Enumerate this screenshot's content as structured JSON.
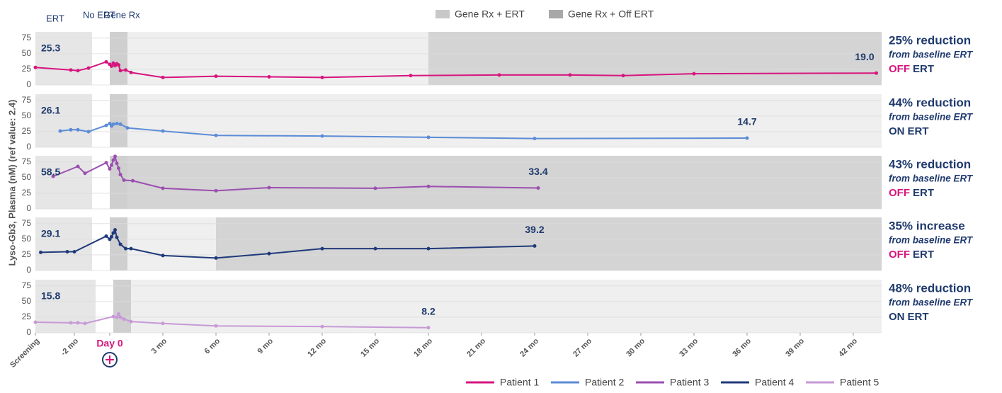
{
  "chart_data": {
    "type": "line",
    "ylabel": "Lyso-Gb3, Plasma (nM) (ref value: 2.4)",
    "phase_labels": {
      "ert": "ERT",
      "no_ert": "No ERT",
      "gene_rx": "Gene Rx"
    },
    "band_legend": [
      {
        "name": "Gene Rx + ERT",
        "color": "#c8c8c8"
      },
      {
        "name": "Gene Rx + Off ERT",
        "color": "#a8a8a8"
      }
    ],
    "xlim": [
      -4.2,
      43.6
    ],
    "xticks": [
      {
        "value": -4.2,
        "label": "Screening"
      },
      {
        "value": -2,
        "label": "-2 mo"
      },
      {
        "value": 0,
        "label": "Day 0"
      },
      {
        "value": 3,
        "label": "3 mo"
      },
      {
        "value": 6,
        "label": "6 mo"
      },
      {
        "value": 9,
        "label": "9 mo"
      },
      {
        "value": 12,
        "label": "12 mo"
      },
      {
        "value": 15,
        "label": "15 mo"
      },
      {
        "value": 18,
        "label": "18 mo"
      },
      {
        "value": 21,
        "label": "21 mo"
      },
      {
        "value": 24,
        "label": "24 mo"
      },
      {
        "value": 27,
        "label": "27 mo"
      },
      {
        "value": 30,
        "label": "30 mo"
      },
      {
        "value": 33,
        "label": "33 mo"
      },
      {
        "value": 36,
        "label": "36 mo"
      },
      {
        "value": 39,
        "label": "39 mo"
      },
      {
        "value": 42,
        "label": "42 mo"
      }
    ],
    "ylim": [
      0,
      85
    ],
    "yticks": [
      0,
      25,
      50,
      75
    ],
    "grid": true,
    "series": [
      {
        "name": "Patient 1",
        "color": "#d6157e",
        "ert_band": [
          -4.2,
          -1
        ],
        "gene_band": [
          0,
          1
        ],
        "off_ert_band": [
          18,
          43.6
        ],
        "x": [
          -4.2,
          -2.2,
          -1.8,
          -1.2,
          -0.2,
          0,
          0.1,
          0.2,
          0.3,
          0.4,
          0.5,
          0.6,
          0.9,
          1.2,
          3,
          6,
          9,
          12,
          17,
          22,
          26,
          29,
          33,
          43.3
        ],
        "values": [
          28,
          24,
          23,
          27,
          37,
          33,
          30,
          35,
          31,
          34,
          32,
          23,
          24,
          20,
          12,
          14,
          13,
          12,
          15,
          16,
          16,
          15,
          18,
          19
        ],
        "baseline_label": "25.3",
        "latest_label": "19.0",
        "headline": "25% reduction",
        "sub": "from baseline ERT",
        "status": [
          "OFF",
          "ERT"
        ],
        "status_color": "#d6157e"
      },
      {
        "name": "Patient 2",
        "color": "#5b8bd6",
        "ert_band": [
          -4.2,
          -1
        ],
        "gene_band": [
          0,
          1
        ],
        "x": [
          -2.8,
          -2.2,
          -1.8,
          -1.2,
          -0.2,
          0,
          0.1,
          0.2,
          0.4,
          0.6,
          1,
          3,
          6,
          12,
          18,
          24,
          36
        ],
        "values": [
          26,
          28,
          28,
          25,
          35,
          38,
          34,
          37,
          38,
          37,
          31,
          26,
          19,
          18,
          16,
          14,
          14.7
        ],
        "baseline_label": "26.1",
        "latest_label": "14.7",
        "headline": "44% reduction",
        "sub": "from baseline ERT",
        "status": [
          "ON",
          "ERT"
        ],
        "status_color": "#1f3a6e"
      },
      {
        "name": "Patient 3",
        "color": "#9b4fb0",
        "ert_band": [
          -4.2,
          -1
        ],
        "gene_band": [
          0,
          1
        ],
        "off_ert_band": [
          1,
          43.6
        ],
        "x": [
          -3.2,
          -1.8,
          -1.4,
          -0.2,
          0,
          0.1,
          0.2,
          0.3,
          0.4,
          0.5,
          0.6,
          0.8,
          1.3,
          3,
          6,
          9,
          15,
          18,
          24.2
        ],
        "values": [
          52,
          68,
          57,
          74,
          64,
          70,
          78,
          84,
          73,
          65,
          55,
          46,
          45,
          33,
          29,
          34,
          33,
          36,
          33.4
        ],
        "baseline_label": "58.5",
        "latest_label": "33.4",
        "headline": "43% reduction",
        "sub": "from baseline ERT",
        "status": [
          "OFF",
          "ERT"
        ],
        "status_color": "#d6157e"
      },
      {
        "name": "Patient 4",
        "color": "#1f3a7a",
        "ert_band": [
          -4.2,
          -1
        ],
        "gene_band": [
          0,
          1
        ],
        "off_ert_band": [
          6,
          43.6
        ],
        "x": [
          -3.9,
          -2.4,
          -2,
          -0.2,
          0,
          0.1,
          0.2,
          0.3,
          0.4,
          0.6,
          0.9,
          1.2,
          3,
          6,
          9,
          12,
          15,
          18,
          24
        ],
        "values": [
          29,
          30,
          30,
          55,
          50,
          54,
          60,
          65,
          53,
          42,
          35,
          35,
          24,
          20,
          27,
          35,
          35,
          35,
          39.2
        ],
        "baseline_label": "29.1",
        "latest_label": "39.2",
        "headline": "35% increase",
        "sub": "from baseline ERT",
        "status": [
          "OFF",
          "ERT"
        ],
        "status_color": "#d6157e"
      },
      {
        "name": "Patient 5",
        "color": "#c79ad6",
        "ert_band": [
          -4.2,
          -0.8
        ],
        "gene_band": [
          0.2,
          1.2
        ],
        "x": [
          -4.2,
          -2.2,
          -1.8,
          -1.4,
          0.2,
          0.4,
          0.5,
          0.6,
          0.8,
          1.2,
          3,
          6,
          12,
          18
        ],
        "values": [
          17,
          16,
          16,
          15,
          26,
          25,
          30,
          25,
          22,
          18,
          15,
          11,
          10,
          8.2
        ],
        "baseline_label": "15.8",
        "latest_label": "8.2",
        "headline": "48% reduction",
        "sub": "from baseline ERT",
        "status": [
          "ON",
          "ERT"
        ],
        "status_color": "#1f3a6e"
      }
    ]
  }
}
